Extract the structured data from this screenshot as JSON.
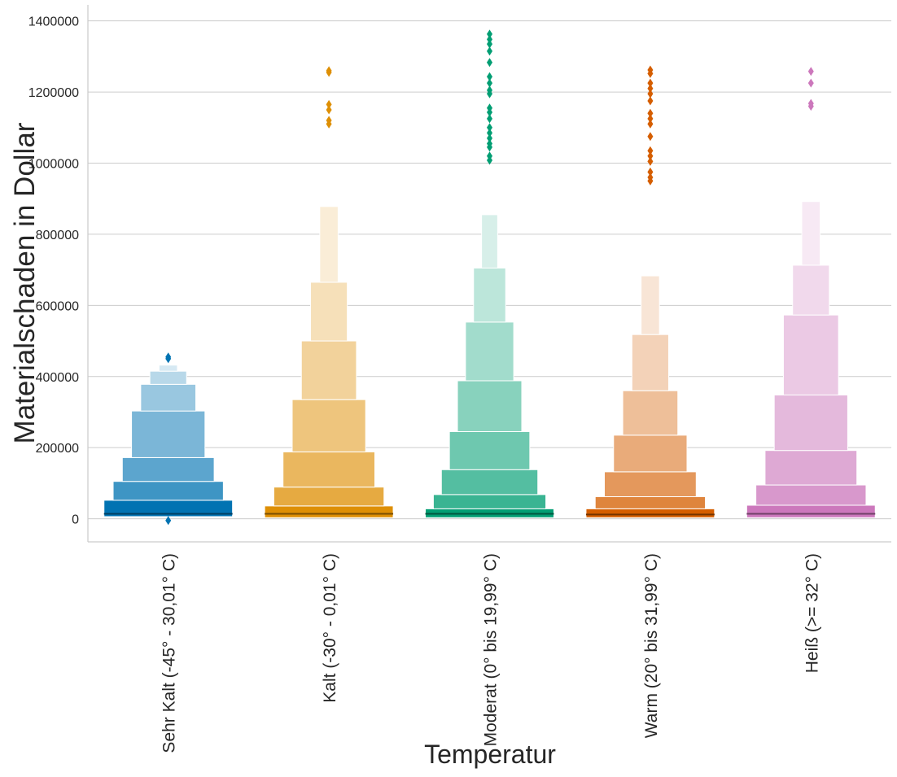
{
  "chart_data": {
    "type": "boxen",
    "title": "",
    "xlabel": "Temperatur",
    "ylabel": "Materialschaden in Dollar",
    "ylim": [
      -65000,
      1445000
    ],
    "yticks": [
      0,
      200000,
      400000,
      600000,
      800000,
      1000000,
      1200000,
      1400000
    ],
    "ytick_labels": [
      "0",
      "200000",
      "400000",
      "600000",
      "800000",
      "1000000",
      "1200000",
      "1400000"
    ],
    "grid": "horizontal",
    "legend": "none",
    "categories": [
      "Sehr Kalt (-45° - 30,01° C)",
      "Kalt (-30° - 0,01° C)",
      "Moderat (0° bis 19,99° C)",
      "Warm (20° bis 31,99° C)",
      "Heiß (>= 32° C)"
    ],
    "series": [
      {
        "color": "#0173b2",
        "median": 14000,
        "levels": [
          {
            "low": 6000,
            "high": 52000
          },
          {
            "low": 52000,
            "high": 105000
          },
          {
            "low": 105000,
            "high": 172000
          },
          {
            "low": 172000,
            "high": 303000
          },
          {
            "low": 303000,
            "high": 378000
          },
          {
            "low": 378000,
            "high": 415000
          },
          {
            "low": 415000,
            "high": 432000
          }
        ],
        "outliers": [
          455000,
          450000,
          -5000
        ]
      },
      {
        "color": "#de8f05",
        "median": 14000,
        "levels": [
          {
            "low": 3000,
            "high": 36000
          },
          {
            "low": 36000,
            "high": 89000
          },
          {
            "low": 89000,
            "high": 188000
          },
          {
            "low": 188000,
            "high": 335000
          },
          {
            "low": 335000,
            "high": 500000
          },
          {
            "low": 500000,
            "high": 665000
          },
          {
            "low": 665000,
            "high": 878000
          }
        ],
        "outliers": [
          1260000,
          1255000,
          1165000,
          1150000,
          1120000,
          1110000
        ]
      },
      {
        "color": "#029e73",
        "median": 14000,
        "levels": [
          {
            "low": 3000,
            "high": 28000
          },
          {
            "low": 28000,
            "high": 68000
          },
          {
            "low": 68000,
            "high": 138000
          },
          {
            "low": 138000,
            "high": 245000
          },
          {
            "low": 245000,
            "high": 388000
          },
          {
            "low": 388000,
            "high": 553000
          },
          {
            "low": 553000,
            "high": 705000
          },
          {
            "low": 705000,
            "high": 855000
          }
        ],
        "outliers": [
          1363000,
          1348000,
          1335000,
          1315000,
          1283000,
          1243000,
          1225000,
          1205000,
          1195000,
          1155000,
          1143000,
          1125000,
          1100000,
          1085000,
          1070000,
          1055000,
          1045000,
          1020000,
          1008000
        ]
      },
      {
        "color": "#d55e00",
        "median": 12000,
        "levels": [
          {
            "low": 3000,
            "high": 28000
          },
          {
            "low": 28000,
            "high": 62000
          },
          {
            "low": 62000,
            "high": 132000
          },
          {
            "low": 132000,
            "high": 235000
          },
          {
            "low": 235000,
            "high": 360000
          },
          {
            "low": 360000,
            "high": 518000
          },
          {
            "low": 518000,
            "high": 683000
          }
        ],
        "outliers": [
          1262000,
          1252000,
          1225000,
          1210000,
          1195000,
          1175000,
          1140000,
          1125000,
          1110000,
          1075000,
          1035000,
          1020000,
          1005000,
          975000,
          960000,
          950000
        ]
      },
      {
        "color": "#cc78bc",
        "median": 14000,
        "levels": [
          {
            "low": 3000,
            "high": 38000
          },
          {
            "low": 38000,
            "high": 95000
          },
          {
            "low": 95000,
            "high": 192000
          },
          {
            "low": 192000,
            "high": 348000
          },
          {
            "low": 348000,
            "high": 573000
          },
          {
            "low": 573000,
            "high": 713000
          },
          {
            "low": 713000,
            "high": 892000
          }
        ],
        "outliers": [
          1258000,
          1225000,
          1168000,
          1160000
        ]
      }
    ]
  }
}
